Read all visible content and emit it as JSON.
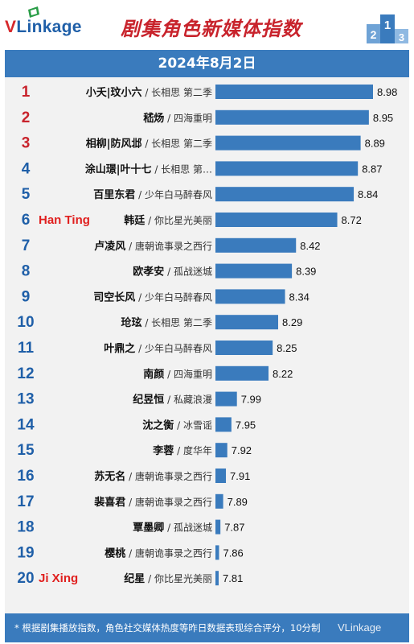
{
  "header": {
    "logo_text_v": "V",
    "logo_text_rest": "Linkage",
    "title": "剧集角色新媒体指数",
    "podium_labels": [
      "2",
      "1",
      "3"
    ]
  },
  "date": "2024年8月2日",
  "footer": {
    "note": "* 根据剧集播放指数，角色社交媒体热度等昨日数据表现综合评分，10分制",
    "watermark": "VLinkage"
  },
  "colors": {
    "rank_red": "#c8232c",
    "rank_blue": "#1f5fa8",
    "bar": "#3a7bbd",
    "header_bar": "#3a7bbd",
    "annotation": "#e0201f"
  },
  "chart_data": {
    "type": "bar",
    "orientation": "horizontal",
    "xlim": [
      0,
      10
    ],
    "grid": false,
    "rows": [
      {
        "rank": "1",
        "name": "小夭|玟小六",
        "show": "长相思 第二季",
        "value": 8.98
      },
      {
        "rank": "2",
        "name": "嵇炀",
        "show": "四海重明",
        "value": 8.95
      },
      {
        "rank": "3",
        "name": "相柳|防风邶",
        "show": "长相思 第二季",
        "value": 8.89
      },
      {
        "rank": "4",
        "name": "涂山璟|叶十七",
        "show": "长相思 第…",
        "value": 8.87
      },
      {
        "rank": "5",
        "name": "百里东君",
        "show": "少年白马醉春风",
        "value": 8.84
      },
      {
        "rank": "6",
        "name": "韩廷",
        "show": "你比星光美丽",
        "value": 8.72,
        "annotation": "Han Ting"
      },
      {
        "rank": "7",
        "name": "卢凌风",
        "show": "唐朝诡事录之西行",
        "value": 8.42
      },
      {
        "rank": "8",
        "name": "欧孝安",
        "show": "孤战迷城",
        "value": 8.39
      },
      {
        "rank": "9",
        "name": "司空长风",
        "show": "少年白马醉春风",
        "value": 8.34
      },
      {
        "rank": "10",
        "name": "玱玹",
        "show": "长相思 第二季",
        "value": 8.29
      },
      {
        "rank": "11",
        "name": "叶鼎之",
        "show": "少年白马醉春风",
        "value": 8.25
      },
      {
        "rank": "12",
        "name": "南颜",
        "show": "四海重明",
        "value": 8.22
      },
      {
        "rank": "13",
        "name": "纪昱恒",
        "show": "私藏浪漫",
        "value": 7.99
      },
      {
        "rank": "14",
        "name": "沈之衡",
        "show": "冰雪谣",
        "value": 7.95
      },
      {
        "rank": "15",
        "name": "李蓉",
        "show": "度华年",
        "value": 7.92
      },
      {
        "rank": "16",
        "name": "苏无名",
        "show": "唐朝诡事录之西行",
        "value": 7.91
      },
      {
        "rank": "17",
        "name": "裴喜君",
        "show": "唐朝诡事录之西行",
        "value": 7.89
      },
      {
        "rank": "18",
        "name": "覃墨卿",
        "show": "孤战迷城",
        "value": 7.87
      },
      {
        "rank": "19",
        "name": "樱桃",
        "show": "唐朝诡事录之西行",
        "value": 7.86
      },
      {
        "rank": "20",
        "name": "纪星",
        "show": "你比星光美丽",
        "value": 7.81,
        "annotation": "Ji Xing"
      }
    ]
  }
}
